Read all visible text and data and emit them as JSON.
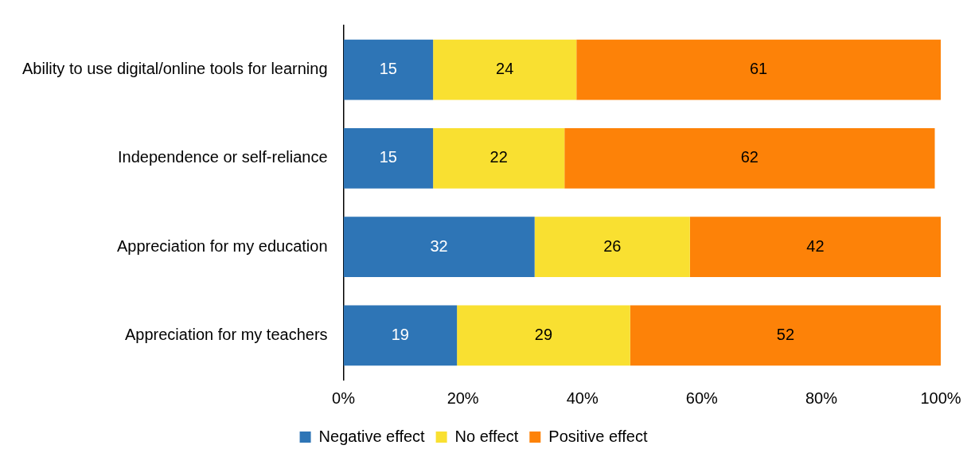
{
  "chart_data": {
    "type": "bar",
    "orientation": "horizontal",
    "stacked": true,
    "categories": [
      "Ability to use digital/online tools for learning",
      "Independence or self-reliance",
      "Appreciation for my education",
      "Appreciation for my teachers"
    ],
    "series": [
      {
        "name": "Negative effect",
        "color": "#2e75b6",
        "values": [
          15,
          15,
          32,
          19
        ]
      },
      {
        "name": "No effect",
        "color": "#f9e031",
        "values": [
          24,
          22,
          26,
          29
        ]
      },
      {
        "name": "Positive effect",
        "color": "#fd8208",
        "values": [
          61,
          62,
          42,
          52
        ]
      }
    ],
    "xlim": [
      0,
      100
    ],
    "xticks": [
      {
        "value": 0,
        "label": "0%"
      },
      {
        "value": 20,
        "label": "20%"
      },
      {
        "value": 40,
        "label": "40%"
      },
      {
        "value": 60,
        "label": "60%"
      },
      {
        "value": 80,
        "label": "80%"
      },
      {
        "value": 100,
        "label": "100%"
      }
    ],
    "data_labels": true,
    "grid": false,
    "legend": "bottom"
  }
}
